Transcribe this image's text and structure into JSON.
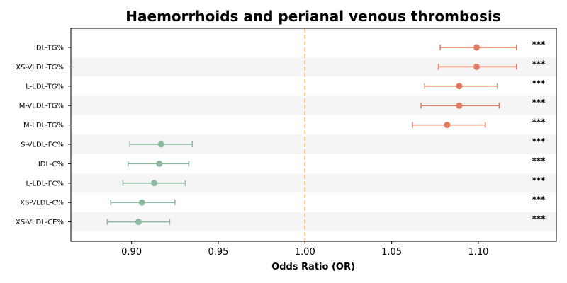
{
  "chart_data": {
    "type": "forest",
    "title": "Haemorrhoids and perianal venous thrombosis",
    "xlabel": "Odds Ratio (OR)",
    "xlim": [
      0.865,
      1.145
    ],
    "xticks": [
      "0.90",
      "0.95",
      "1.00",
      "1.05",
      "1.10"
    ],
    "reference_line": 1.0,
    "reference_color": "#f0c080",
    "positive_color": "#e07b62",
    "negative_color": "#8bba9f",
    "stripe_color": "#f5f5f5",
    "rows": [
      {
        "label": "IDL-TG%",
        "or": 1.099,
        "lo": 1.078,
        "hi": 1.122,
        "sig": "***"
      },
      {
        "label": "XS-VLDL-TG%",
        "or": 1.099,
        "lo": 1.077,
        "hi": 1.122,
        "sig": "***"
      },
      {
        "label": "L-LDL-TG%",
        "or": 1.089,
        "lo": 1.069,
        "hi": 1.111,
        "sig": "***"
      },
      {
        "label": "M-VLDL-TG%",
        "or": 1.089,
        "lo": 1.067,
        "hi": 1.112,
        "sig": "***"
      },
      {
        "label": "M-LDL-TG%",
        "or": 1.082,
        "lo": 1.062,
        "hi": 1.104,
        "sig": "***"
      },
      {
        "label": "S-VLDL-FC%",
        "or": 0.917,
        "lo": 0.899,
        "hi": 0.935,
        "sig": "***"
      },
      {
        "label": "IDL-C%",
        "or": 0.916,
        "lo": 0.898,
        "hi": 0.933,
        "sig": "***"
      },
      {
        "label": "L-LDL-FC%",
        "or": 0.913,
        "lo": 0.895,
        "hi": 0.931,
        "sig": "***"
      },
      {
        "label": "XS-VLDL-C%",
        "or": 0.906,
        "lo": 0.888,
        "hi": 0.925,
        "sig": "***"
      },
      {
        "label": "XS-VLDL-CE%",
        "or": 0.904,
        "lo": 0.886,
        "hi": 0.922,
        "sig": "***"
      }
    ]
  }
}
